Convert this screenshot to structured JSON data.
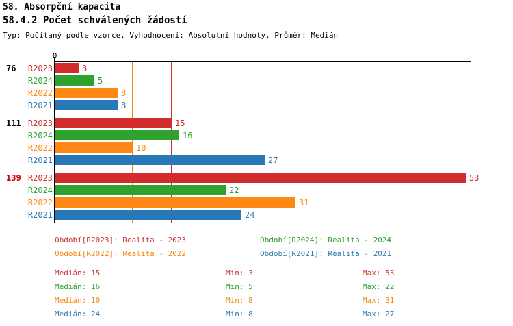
{
  "header": {
    "title": "58. Absorpční kapacita",
    "subtitle": "58.4.2 Počet schválených žádostí",
    "meta": "Typ: Počítaný podle vzorce, Vyhodnocení: Absolutní hodnoty, Průměr: Medián"
  },
  "chart_data": {
    "type": "bar",
    "orientation": "horizontal",
    "title": "58.4.2 Počet schválených žádostí",
    "x_axis": {
      "origin_tick_label": "0",
      "max": 53,
      "gridlines": false
    },
    "categories": [
      "76",
      "111",
      "139"
    ],
    "category_label_colors": [
      "#000000",
      "#000000",
      "#cc0000"
    ],
    "series": [
      {
        "name": "R2023",
        "color": "#d22c2c",
        "values": [
          3,
          15,
          53
        ],
        "median": 15
      },
      {
        "name": "R2024",
        "color": "#2ea12e",
        "values": [
          5,
          16,
          22
        ],
        "median": 16
      },
      {
        "name": "R2022",
        "color": "#ff8714",
        "values": [
          8,
          10,
          31
        ],
        "median": 10
      },
      {
        "name": "R2021",
        "color": "#2878b8",
        "values": [
          8,
          27,
          24
        ],
        "median": 24
      }
    ],
    "median_lines_shown": true
  },
  "legend": {
    "items": [
      {
        "series": "R2023",
        "label": "Období[R2023]:",
        "value": "Realita - 2023",
        "color": "#cc3333"
      },
      {
        "series": "R2024",
        "label": "Období[R2024]:",
        "value": "Realita - 2024",
        "color": "#2f9e2f"
      },
      {
        "series": "R2022",
        "label": "Období[R2022]:",
        "value": "Realita - 2022",
        "color": "#f5880f"
      },
      {
        "series": "R2021",
        "label": "Období[R2021]:",
        "value": "Realita - 2021",
        "color": "#2e7cb5"
      }
    ]
  },
  "stats": {
    "median_word": "Medián",
    "min_word": "Min",
    "max_word": "Max",
    "rows": [
      {
        "series": "R2023",
        "color": "#cc3333",
        "median": 15,
        "min": 3,
        "max": 53
      },
      {
        "series": "R2024",
        "color": "#2f9e2f",
        "median": 16,
        "min": 5,
        "max": 22
      },
      {
        "series": "R2022",
        "color": "#f5880f",
        "median": 10,
        "min": 8,
        "max": 31
      },
      {
        "series": "R2021",
        "color": "#2e7cb5",
        "median": 24,
        "min": 8,
        "max": 27
      }
    ]
  }
}
